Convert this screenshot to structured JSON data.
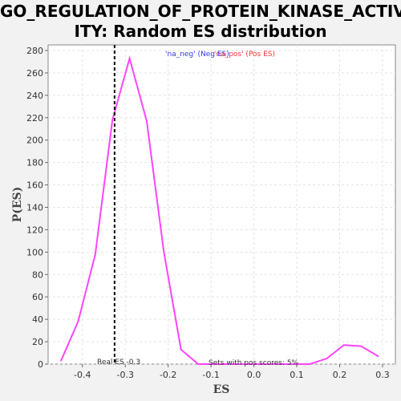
{
  "title_line1": "GO_REGULATION_OF_PROTEIN_KINASE_ACTIV",
  "title_line2": "ITY: Random ES distribution",
  "legend": {
    "neg_text": "'na_neg' (Neg ES)",
    "pos_text": "'na_pos' (Pos ES)",
    "neg_color": "#3333ff",
    "pos_color": "#ff3333"
  },
  "annotations": {
    "real_es": "Real ES -0.3",
    "pos_scores": "Sets with pos scores: 5%"
  },
  "chart_data": {
    "type": "line",
    "xlabel": "ES",
    "ylabel": "P(ES)",
    "xlim": [
      -0.48,
      0.33
    ],
    "ylim": [
      0,
      285
    ],
    "x_ticks": [
      -0.4,
      -0.3,
      -0.2,
      -0.1,
      0.0,
      0.1,
      0.2,
      0.3
    ],
    "x_tick_labels": [
      "-0.4",
      "-0.3",
      "-0.2",
      "-0.1",
      "0.0",
      "0.1",
      "0.2",
      "0.3"
    ],
    "y_ticks": [
      0,
      20,
      40,
      60,
      80,
      100,
      120,
      140,
      160,
      180,
      200,
      220,
      240,
      260,
      280
    ],
    "y_tick_labels": [
      "0",
      "20",
      "40",
      "60",
      "80",
      "100",
      "120",
      "140",
      "160",
      "180",
      "200",
      "220",
      "240",
      "260",
      "280"
    ],
    "grid": true,
    "real_es_value": -0.325,
    "series": [
      {
        "color": "#ff44ff",
        "x": [
          -0.45,
          -0.41,
          -0.37,
          -0.33,
          -0.29,
          -0.25,
          -0.21,
          -0.17,
          -0.13,
          -0.09,
          -0.05,
          -0.01,
          0.03,
          0.07,
          0.11,
          0.13,
          0.17,
          0.21,
          0.25,
          0.29
        ],
        "y": [
          3,
          38,
          98,
          218,
          273,
          217,
          100,
          13,
          0,
          0,
          0,
          0,
          0,
          0,
          0,
          0,
          5,
          17,
          16,
          7
        ]
      }
    ]
  }
}
